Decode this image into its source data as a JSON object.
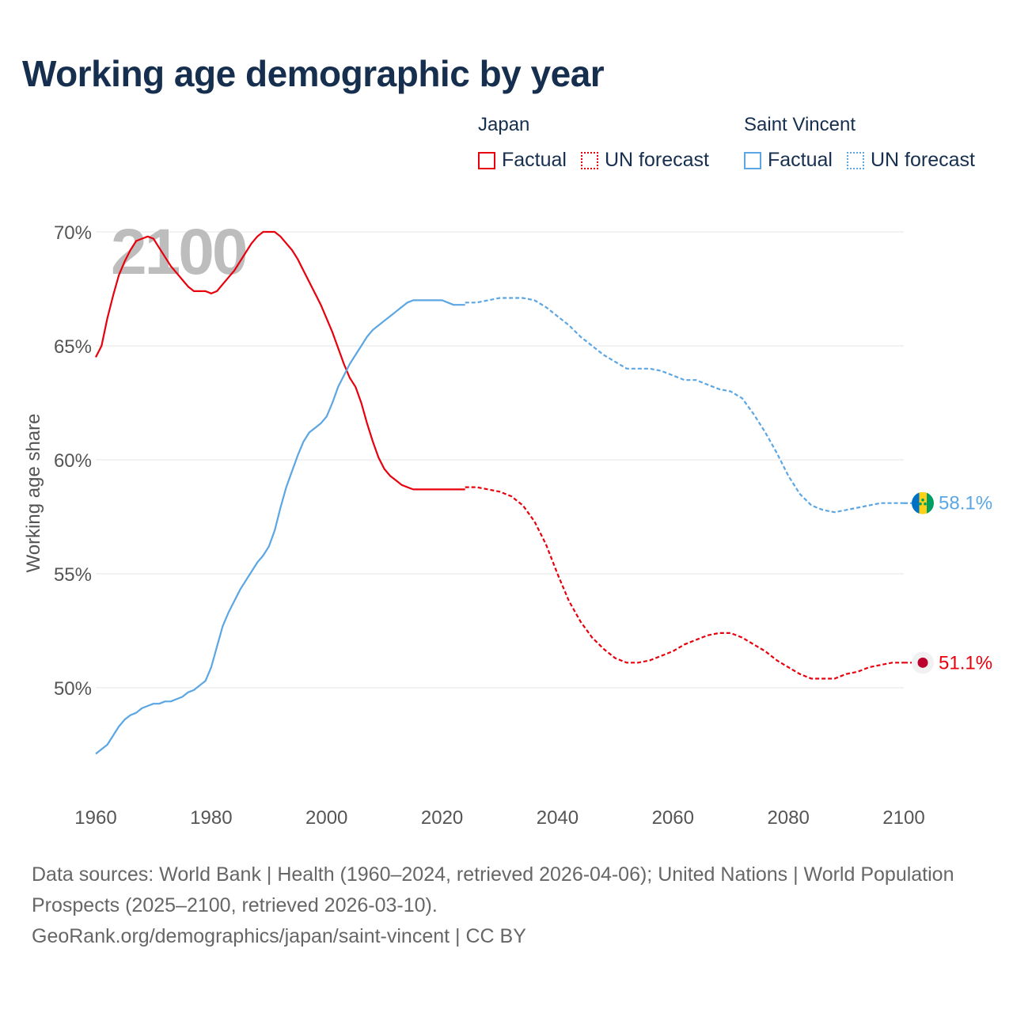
{
  "chart_data": {
    "type": "line",
    "title": "Working age demographic by year",
    "xlabel": "",
    "ylabel": "Working age share",
    "xlim": [
      1960,
      2100
    ],
    "ylim": [
      46,
      71
    ],
    "x_ticks": [
      "1960",
      "1980",
      "2000",
      "2020",
      "2040",
      "2060",
      "2080",
      "2100"
    ],
    "y_ticks": [
      "50%",
      "55%",
      "60%",
      "65%",
      "70%"
    ],
    "year_watermark": "2100",
    "legend": {
      "groups": [
        {
          "name": "Japan",
          "items": [
            "Factual",
            "UN forecast"
          ],
          "color": "#e8000d"
        },
        {
          "name": "Saint Vincent",
          "items": [
            "Factual",
            "UN forecast"
          ],
          "color": "#5ba6e3"
        }
      ]
    },
    "series": [
      {
        "name": "Japan",
        "color": "#e8000d",
        "end_label": "51.1%",
        "factual": {
          "x": [
            1960,
            1961,
            1962,
            1963,
            1964,
            1965,
            1966,
            1967,
            1968,
            1969,
            1970,
            1971,
            1972,
            1973,
            1974,
            1975,
            1976,
            1977,
            1978,
            1979,
            1980,
            1981,
            1982,
            1983,
            1984,
            1985,
            1986,
            1987,
            1988,
            1989,
            1990,
            1991,
            1992,
            1993,
            1994,
            1995,
            1996,
            1997,
            1998,
            1999,
            2000,
            2001,
            2002,
            2003,
            2004,
            2005,
            2006,
            2007,
            2008,
            2009,
            2010,
            2011,
            2012,
            2013,
            2014,
            2015,
            2016,
            2017,
            2018,
            2019,
            2020,
            2021,
            2022,
            2023,
            2024
          ],
          "y": [
            64.5,
            65.0,
            66.2,
            67.2,
            68.1,
            68.7,
            69.2,
            69.6,
            69.7,
            69.8,
            69.7,
            69.3,
            68.9,
            68.5,
            68.2,
            67.9,
            67.6,
            67.4,
            67.4,
            67.4,
            67.3,
            67.4,
            67.7,
            68.0,
            68.3,
            68.7,
            69.1,
            69.5,
            69.8,
            70.0,
            70.0,
            70.0,
            69.8,
            69.5,
            69.2,
            68.8,
            68.3,
            67.8,
            67.3,
            66.8,
            66.2,
            65.6,
            64.9,
            64.2,
            63.6,
            63.2,
            62.5,
            61.6,
            60.8,
            60.1,
            59.6,
            59.3,
            59.1,
            58.9,
            58.8,
            58.7,
            58.7,
            58.7,
            58.7,
            58.7,
            58.7,
            58.7,
            58.7,
            58.7,
            58.7
          ]
        },
        "forecast": {
          "x": [
            2024,
            2026,
            2028,
            2030,
            2032,
            2034,
            2036,
            2038,
            2040,
            2042,
            2044,
            2046,
            2048,
            2050,
            2052,
            2054,
            2056,
            2058,
            2060,
            2062,
            2064,
            2066,
            2068,
            2070,
            2072,
            2074,
            2076,
            2078,
            2080,
            2082,
            2084,
            2086,
            2088,
            2090,
            2092,
            2094,
            2096,
            2098,
            2100
          ],
          "y": [
            58.8,
            58.8,
            58.7,
            58.6,
            58.4,
            58.0,
            57.3,
            56.3,
            55.0,
            53.8,
            52.9,
            52.2,
            51.7,
            51.3,
            51.1,
            51.1,
            51.2,
            51.4,
            51.6,
            51.9,
            52.1,
            52.3,
            52.4,
            52.4,
            52.2,
            51.9,
            51.6,
            51.2,
            50.9,
            50.6,
            50.4,
            50.4,
            50.4,
            50.6,
            50.7,
            50.9,
            51.0,
            51.1,
            51.1
          ]
        }
      },
      {
        "name": "Saint Vincent",
        "color": "#5ba6e3",
        "end_label": "58.1%",
        "factual": {
          "x": [
            1960,
            1961,
            1962,
            1963,
            1964,
            1965,
            1966,
            1967,
            1968,
            1969,
            1970,
            1971,
            1972,
            1973,
            1974,
            1975,
            1976,
            1977,
            1978,
            1979,
            1980,
            1981,
            1982,
            1983,
            1984,
            1985,
            1986,
            1987,
            1988,
            1989,
            1990,
            1991,
            1992,
            1993,
            1994,
            1995,
            1996,
            1997,
            1998,
            1999,
            2000,
            2001,
            2002,
            2003,
            2004,
            2005,
            2006,
            2007,
            2008,
            2009,
            2010,
            2011,
            2012,
            2013,
            2014,
            2015,
            2016,
            2017,
            2018,
            2019,
            2020,
            2021,
            2022,
            2023,
            2024
          ],
          "y": [
            47.1,
            47.3,
            47.5,
            47.9,
            48.3,
            48.6,
            48.8,
            48.9,
            49.1,
            49.2,
            49.3,
            49.3,
            49.4,
            49.4,
            49.5,
            49.6,
            49.8,
            49.9,
            50.1,
            50.3,
            50.9,
            51.8,
            52.7,
            53.3,
            53.8,
            54.3,
            54.7,
            55.1,
            55.5,
            55.8,
            56.2,
            56.9,
            57.9,
            58.8,
            59.5,
            60.2,
            60.8,
            61.2,
            61.4,
            61.6,
            61.9,
            62.5,
            63.2,
            63.7,
            64.2,
            64.6,
            65.0,
            65.4,
            65.7,
            65.9,
            66.1,
            66.3,
            66.5,
            66.7,
            66.9,
            67.0,
            67.0,
            67.0,
            67.0,
            67.0,
            67.0,
            66.9,
            66.8,
            66.8,
            66.8
          ]
        },
        "forecast": {
          "x": [
            2024,
            2026,
            2028,
            2030,
            2032,
            2034,
            2036,
            2038,
            2040,
            2042,
            2044,
            2046,
            2048,
            2050,
            2052,
            2054,
            2056,
            2058,
            2060,
            2062,
            2064,
            2066,
            2068,
            2070,
            2072,
            2074,
            2076,
            2078,
            2080,
            2082,
            2084,
            2086,
            2088,
            2090,
            2092,
            2094,
            2096,
            2098,
            2100
          ],
          "y": [
            66.9,
            66.9,
            67.0,
            67.1,
            67.1,
            67.1,
            67.0,
            66.7,
            66.3,
            65.9,
            65.4,
            65.0,
            64.6,
            64.3,
            64.0,
            64.0,
            64.0,
            63.9,
            63.7,
            63.5,
            63.5,
            63.3,
            63.1,
            63.0,
            62.7,
            62.0,
            61.2,
            60.3,
            59.3,
            58.5,
            58.0,
            57.8,
            57.7,
            57.8,
            57.9,
            58.0,
            58.1,
            58.1,
            58.1
          ]
        }
      }
    ]
  },
  "footer": {
    "sources": "Data sources: World Bank | Health (1960–2024, retrieved 2026-04-06); United Nations | World Population Prospects (2025–2100, retrieved 2026-03-10).",
    "credit": "GeoRank.org/demographics/japan/saint-vincent | CC BY"
  }
}
